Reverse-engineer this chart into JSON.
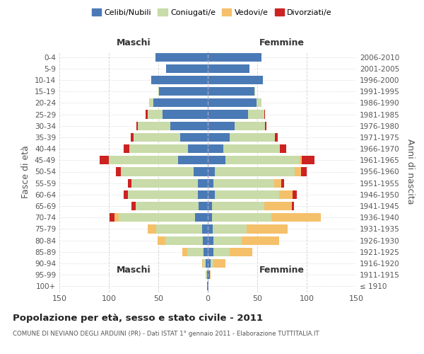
{
  "age_groups": [
    "100+",
    "95-99",
    "90-94",
    "85-89",
    "80-84",
    "75-79",
    "70-74",
    "65-69",
    "60-64",
    "55-59",
    "50-54",
    "45-49",
    "40-44",
    "35-39",
    "30-34",
    "25-29",
    "20-24",
    "15-19",
    "10-14",
    "5-9",
    "0-4"
  ],
  "birth_years": [
    "≤ 1910",
    "1911-1915",
    "1916-1920",
    "1921-1925",
    "1926-1930",
    "1931-1935",
    "1936-1940",
    "1941-1945",
    "1946-1950",
    "1951-1955",
    "1956-1960",
    "1961-1965",
    "1966-1970",
    "1971-1975",
    "1976-1980",
    "1981-1985",
    "1986-1990",
    "1991-1995",
    "1996-2000",
    "2001-2005",
    "2006-2010"
  ],
  "males": {
    "celibi": [
      1,
      1,
      2,
      4,
      5,
      6,
      13,
      9,
      10,
      10,
      14,
      30,
      20,
      28,
      38,
      46,
      55,
      49,
      57,
      42,
      53
    ],
    "coniugati": [
      0,
      1,
      3,
      17,
      38,
      46,
      77,
      64,
      71,
      67,
      74,
      70,
      59,
      47,
      33,
      15,
      4,
      1,
      0,
      0,
      0
    ],
    "vedovi": [
      0,
      0,
      1,
      5,
      8,
      9,
      4,
      0,
      0,
      0,
      0,
      0,
      0,
      0,
      0,
      0,
      0,
      0,
      0,
      0,
      0
    ],
    "divorziati": [
      0,
      0,
      0,
      0,
      0,
      0,
      5,
      4,
      4,
      4,
      5,
      9,
      6,
      3,
      1,
      2,
      0,
      0,
      0,
      0,
      0
    ]
  },
  "females": {
    "nubili": [
      1,
      2,
      3,
      6,
      6,
      5,
      4,
      4,
      7,
      6,
      7,
      18,
      16,
      22,
      27,
      41,
      49,
      47,
      56,
      42,
      54
    ],
    "coniugate": [
      0,
      0,
      3,
      16,
      28,
      34,
      60,
      53,
      65,
      61,
      81,
      75,
      57,
      46,
      31,
      16,
      5,
      1,
      0,
      0,
      0
    ],
    "vedove": [
      0,
      1,
      12,
      23,
      38,
      42,
      50,
      28,
      14,
      7,
      6,
      2,
      0,
      0,
      0,
      0,
      0,
      0,
      0,
      0,
      0
    ],
    "divorziate": [
      0,
      0,
      0,
      0,
      0,
      0,
      0,
      2,
      4,
      3,
      6,
      13,
      6,
      3,
      1,
      1,
      0,
      0,
      0,
      0,
      0
    ]
  },
  "colors": {
    "celibi": "#4a7ab5",
    "coniugati": "#c8dba8",
    "vedovi": "#f5c06a",
    "divorziati": "#cc2222"
  },
  "xlim": 150,
  "title": "Popolazione per età, sesso e stato civile - 2011",
  "subtitle": "COMUNE DI NEVIANO DEGLI ARDUINI (PR) - Dati ISTAT 1° gennaio 2011 - Elaborazione TUTTITALIA.IT",
  "ylabel_left": "Fasce di età",
  "ylabel_right": "Anni di nascita",
  "xlabel_maschi": "Maschi",
  "xlabel_femmine": "Femmine",
  "legend_labels": [
    "Celibi/Nubili",
    "Coniugati/e",
    "Vedovi/e",
    "Divorziati/e"
  ],
  "bg_color": "#ffffff",
  "grid_color": "#cccccc"
}
